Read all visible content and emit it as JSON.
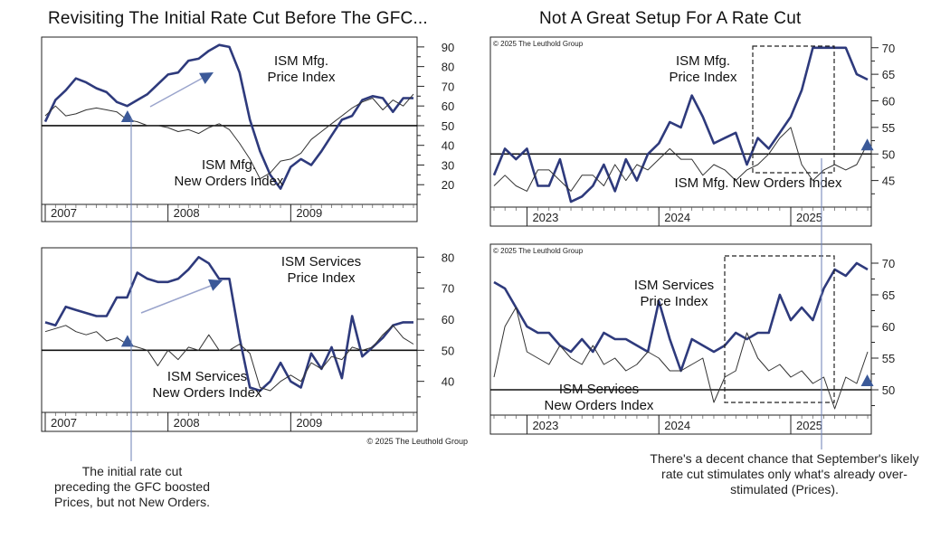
{
  "titles": {
    "left": "Revisiting The Initial Rate Cut Before The GFC...",
    "right": "Not A Great Setup For A Rate Cut"
  },
  "notes": {
    "left": "The initial rate cut preceding the GFC boosted Prices, but not New Orders.",
    "right": "There's a decent chance that September's likely rate cut stimulates only what's already over-stimulated (Prices)."
  },
  "copyright": "© 2025 The Leuthold Group",
  "colors": {
    "price": "#2e3a7c",
    "orders": "#333333",
    "arrow": "#9aa4cc",
    "marker": "#3b5998"
  },
  "chart_data": [
    {
      "id": "tl",
      "type": "line",
      "x": [
        2007.0,
        2007.083,
        2007.167,
        2007.25,
        2007.333,
        2007.417,
        2007.5,
        2007.583,
        2007.667,
        2007.75,
        2007.833,
        2007.917,
        2008.0,
        2008.083,
        2008.167,
        2008.25,
        2008.333,
        2008.417,
        2008.5,
        2008.583,
        2008.667,
        2008.75,
        2008.833,
        2008.917,
        2009.0,
        2009.083,
        2009.167,
        2009.25,
        2009.333,
        2009.417,
        2009.5,
        2009.583,
        2009.667,
        2009.75,
        2009.833,
        2009.917,
        2010.0
      ],
      "series": [
        {
          "name": "ISM Mfg. Price Index",
          "values": [
            52,
            63,
            68,
            74,
            72,
            69,
            67,
            62,
            60,
            63,
            66,
            71,
            76,
            77,
            83,
            84,
            88,
            91,
            90,
            77,
            53,
            37,
            25,
            18,
            29,
            33,
            30,
            37,
            45,
            53,
            55,
            63,
            65,
            64,
            57,
            64,
            64
          ]
        },
        {
          "name": "ISM Mfg. New Orders Index",
          "values": [
            55,
            60,
            55,
            56,
            58,
            59,
            58,
            57,
            53,
            52,
            50,
            50,
            49,
            47,
            48,
            46,
            49,
            51,
            48,
            41,
            33,
            23,
            26,
            32,
            33,
            36,
            43,
            47,
            51,
            55,
            59,
            62,
            64,
            58,
            63,
            60,
            66
          ]
        }
      ],
      "xticks": [
        "2007",
        "2008",
        "2009"
      ],
      "yticks": [
        20,
        30,
        40,
        50,
        60,
        70,
        80,
        90
      ],
      "ylim": [
        10,
        95
      ],
      "labels": [
        "ISM Mfg.\nPrice Index",
        "ISM Mfg.\nNew Orders Index"
      ],
      "marker": 2007.67
    },
    {
      "id": "bl",
      "type": "line",
      "x": [
        2007.0,
        2007.083,
        2007.167,
        2007.25,
        2007.333,
        2007.417,
        2007.5,
        2007.583,
        2007.667,
        2007.75,
        2007.833,
        2007.917,
        2008.0,
        2008.083,
        2008.167,
        2008.25,
        2008.333,
        2008.417,
        2008.5,
        2008.583,
        2008.667,
        2008.75,
        2008.833,
        2008.917,
        2009.0,
        2009.083,
        2009.167,
        2009.25,
        2009.333,
        2009.417,
        2009.5,
        2009.583,
        2009.667,
        2009.75,
        2009.833,
        2009.917,
        2010.0
      ],
      "series": [
        {
          "name": "ISM Services Price Index",
          "values": [
            59,
            58,
            64,
            63,
            62,
            61,
            61,
            67,
            67,
            75,
            73,
            72,
            72,
            73,
            76,
            80,
            78,
            73,
            73,
            54,
            38,
            37,
            40,
            46,
            40,
            38,
            49,
            44,
            51,
            41,
            61,
            48,
            51,
            54,
            58,
            59,
            59
          ]
        },
        {
          "name": "ISM Services New Orders Index",
          "values": [
            56,
            57,
            58,
            56,
            55,
            56,
            53,
            54,
            52,
            51,
            50,
            45,
            50,
            47,
            51,
            50,
            55,
            50,
            50,
            52,
            49,
            38,
            37,
            40,
            42,
            40,
            46,
            44,
            48,
            47,
            51,
            50,
            51,
            55,
            58,
            54,
            52
          ]
        }
      ],
      "xticks": [
        "2007",
        "2008",
        "2009"
      ],
      "yticks": [
        40,
        50,
        60,
        70,
        80
      ],
      "ylim": [
        30,
        83
      ],
      "labels": [
        "ISM Services\nPrice Index",
        "ISM Services\nNew Orders Index"
      ],
      "marker": 2007.67
    },
    {
      "id": "tr",
      "type": "line",
      "x": [
        2022.75,
        2022.833,
        2022.917,
        2023.0,
        2023.083,
        2023.167,
        2023.25,
        2023.333,
        2023.417,
        2023.5,
        2023.583,
        2023.667,
        2023.75,
        2023.833,
        2023.917,
        2024.0,
        2024.083,
        2024.167,
        2024.25,
        2024.333,
        2024.417,
        2024.5,
        2024.583,
        2024.667,
        2024.75,
        2024.833,
        2024.917,
        2025.0,
        2025.083,
        2025.167,
        2025.25,
        2025.333,
        2025.417,
        2025.5,
        2025.583
      ],
      "series": [
        {
          "name": "ISM Mfg. Price Index",
          "values": [
            46,
            51,
            49,
            51,
            44,
            44,
            49,
            41,
            42,
            44,
            48,
            43,
            49,
            45,
            50,
            52,
            56,
            55,
            61,
            57,
            52,
            53,
            54,
            48,
            53,
            51,
            54,
            57,
            62,
            70,
            70,
            70,
            70,
            65,
            64
          ]
        },
        {
          "name": "ISM Mfg. New Orders Index",
          "values": [
            44,
            46,
            44,
            43,
            47,
            47,
            45,
            43,
            46,
            46,
            44,
            48,
            45,
            48,
            47,
            49,
            51,
            49,
            49,
            46,
            48,
            47,
            45,
            47,
            48,
            50,
            53,
            55,
            48,
            45,
            47,
            48,
            47,
            48,
            52
          ]
        }
      ],
      "xticks": [
        "2023",
        "2024",
        "2025"
      ],
      "yticks": [
        45,
        50,
        55,
        60,
        65,
        70
      ],
      "ylim": [
        40,
        72
      ],
      "labels": [
        "ISM Mfg.\nPrice Index",
        "ISM Mfg. New Orders Index"
      ],
      "marker": 2025.58
    },
    {
      "id": "br",
      "type": "line",
      "x": [
        2022.75,
        2022.833,
        2022.917,
        2023.0,
        2023.083,
        2023.167,
        2023.25,
        2023.333,
        2023.417,
        2023.5,
        2023.583,
        2023.667,
        2023.75,
        2023.833,
        2023.917,
        2024.0,
        2024.083,
        2024.167,
        2024.25,
        2024.333,
        2024.417,
        2024.5,
        2024.583,
        2024.667,
        2024.75,
        2024.833,
        2024.917,
        2025.0,
        2025.083,
        2025.167,
        2025.25,
        2025.333,
        2025.417,
        2025.5,
        2025.583
      ],
      "series": [
        {
          "name": "ISM Services Price Index",
          "values": [
            67,
            66,
            63,
            60,
            59,
            59,
            57,
            56,
            58,
            56,
            59,
            58,
            58,
            57,
            56,
            64,
            58,
            53,
            58,
            57,
            56,
            57,
            59,
            58,
            59,
            59,
            65,
            61,
            63,
            61,
            66,
            69,
            68,
            70,
            69
          ]
        },
        {
          "name": "ISM Services New Orders Index",
          "values": [
            52,
            60,
            63,
            56,
            55,
            54,
            57,
            55,
            54,
            57,
            54,
            55,
            53,
            54,
            56,
            55,
            53,
            53,
            54,
            55,
            48,
            52,
            53,
            59,
            55,
            53,
            54,
            52,
            53,
            51,
            52,
            47,
            52,
            51,
            56
          ]
        }
      ],
      "xticks": [
        "2023",
        "2024",
        "2025"
      ],
      "yticks": [
        50,
        55,
        60,
        65,
        70
      ],
      "ylim": [
        46,
        73
      ],
      "labels": [
        "ISM Services\nPrice Index",
        "ISM Services\nNew Orders Index"
      ],
      "marker": 2025.58
    }
  ]
}
